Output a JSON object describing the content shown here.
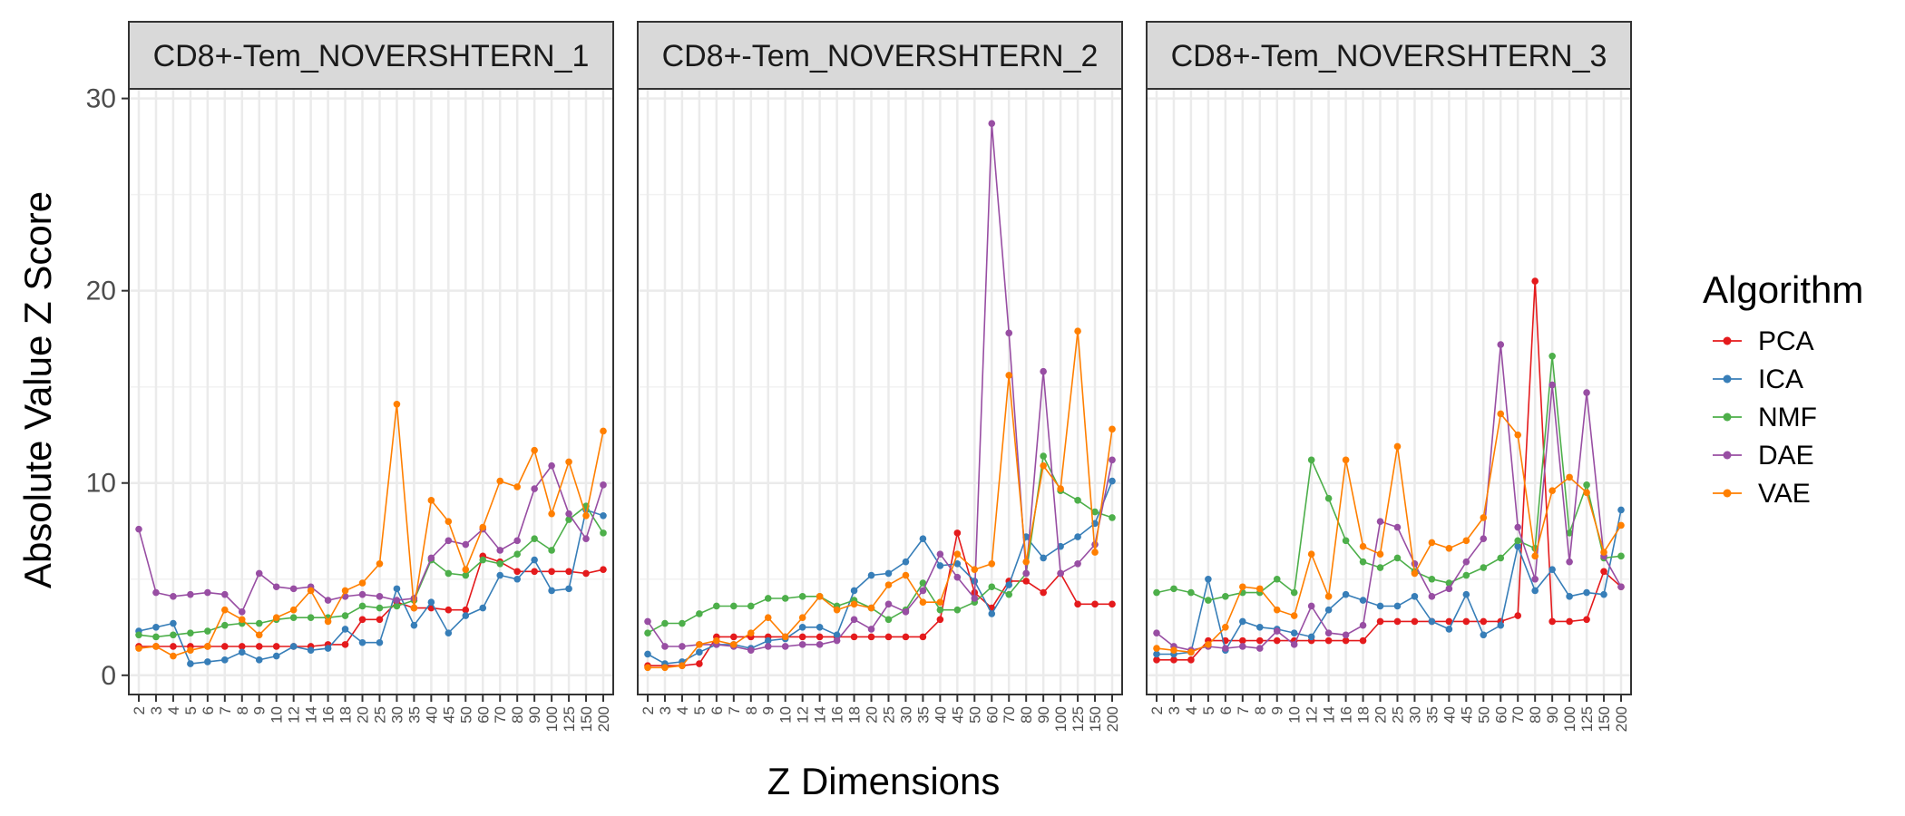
{
  "chart_data": {
    "type": "line",
    "xlabel": "Z Dimensions",
    "ylabel": "Absolute Value Z Score",
    "ylim": [
      -1,
      30.5
    ],
    "yticks": [
      0,
      10,
      20,
      30
    ],
    "x": [
      "2",
      "3",
      "4",
      "5",
      "6",
      "7",
      "8",
      "9",
      "10",
      "12",
      "14",
      "16",
      "18",
      "20",
      "25",
      "30",
      "35",
      "40",
      "45",
      "50",
      "60",
      "70",
      "80",
      "90",
      "100",
      "125",
      "150",
      "200"
    ],
    "grid": true,
    "legend": {
      "title": "Algorithm",
      "position": "right"
    },
    "panels": [
      {
        "title": "CD8+-Tem_NOVERSHTERN_1",
        "series": [
          {
            "name": "PCA",
            "color": "#E41A1C",
            "values": [
              1.5,
              1.5,
              1.5,
              1.5,
              1.5,
              1.5,
              1.5,
              1.5,
              1.5,
              1.5,
              1.5,
              1.6,
              1.6,
              2.9,
              2.9,
              3.8,
              3.5,
              3.5,
              3.4,
              3.4,
              6.2,
              5.9,
              5.4,
              5.4,
              5.4,
              5.4,
              5.3,
              5.5
            ]
          },
          {
            "name": "ICA",
            "color": "#377EB8",
            "values": [
              2.3,
              2.5,
              2.7,
              0.6,
              0.7,
              0.8,
              1.2,
              0.8,
              1.0,
              1.5,
              1.3,
              1.4,
              2.4,
              1.7,
              1.7,
              4.5,
              2.6,
              3.8,
              2.2,
              3.1,
              3.5,
              5.2,
              5.0,
              6.0,
              4.4,
              4.5,
              8.6,
              8.3
            ]
          },
          {
            "name": "NMF",
            "color": "#4DAF4A",
            "values": [
              2.1,
              2.0,
              2.1,
              2.2,
              2.3,
              2.6,
              2.7,
              2.7,
              2.9,
              3.0,
              3.0,
              3.0,
              3.1,
              3.6,
              3.5,
              3.6,
              3.9,
              6.0,
              5.3,
              5.2,
              6.0,
              5.8,
              6.3,
              7.1,
              6.5,
              8.1,
              8.8,
              7.4
            ]
          },
          {
            "name": "DAE",
            "color": "#984EA3",
            "values": [
              7.6,
              4.3,
              4.1,
              4.2,
              4.3,
              4.2,
              3.3,
              5.3,
              4.6,
              4.5,
              4.6,
              3.9,
              4.1,
              4.2,
              4.1,
              3.9,
              4.0,
              6.1,
              7.0,
              6.8,
              7.6,
              6.5,
              7.0,
              9.7,
              10.9,
              8.4,
              7.1,
              9.9
            ]
          },
          {
            "name": "VAE",
            "color": "#FF7F00",
            "values": [
              1.4,
              1.5,
              1.0,
              1.3,
              1.5,
              3.4,
              2.9,
              2.1,
              3.0,
              3.4,
              4.4,
              2.8,
              4.4,
              4.8,
              5.8,
              14.1,
              3.5,
              9.1,
              8.0,
              5.5,
              7.7,
              10.1,
              9.8,
              11.7,
              8.4,
              11.1,
              8.3,
              12.7
            ]
          }
        ]
      },
      {
        "title": "CD8+-Tem_NOVERSHTERN_2",
        "series": [
          {
            "name": "PCA",
            "color": "#E41A1C",
            "values": [
              0.5,
              0.5,
              0.5,
              0.6,
              2.0,
              2.0,
              2.0,
              2.0,
              2.0,
              2.0,
              2.0,
              2.0,
              2.0,
              2.0,
              2.0,
              2.0,
              2.0,
              2.9,
              7.4,
              4.3,
              3.5,
              4.9,
              4.9,
              4.3,
              5.3,
              3.7,
              3.7,
              3.7
            ]
          },
          {
            "name": "ICA",
            "color": "#377EB8",
            "values": [
              1.1,
              0.6,
              0.7,
              1.2,
              1.6,
              1.6,
              1.4,
              1.8,
              1.9,
              2.5,
              2.5,
              2.1,
              4.4,
              5.2,
              5.3,
              5.9,
              7.1,
              5.7,
              5.8,
              4.9,
              3.2,
              4.7,
              7.2,
              6.1,
              6.7,
              7.2,
              7.9,
              10.1
            ]
          },
          {
            "name": "NMF",
            "color": "#4DAF4A",
            "values": [
              2.2,
              2.7,
              2.7,
              3.2,
              3.6,
              3.6,
              3.6,
              4.0,
              4.0,
              4.1,
              4.1,
              3.6,
              3.9,
              3.5,
              2.9,
              3.4,
              4.8,
              3.4,
              3.4,
              3.8,
              4.6,
              4.2,
              5.3,
              11.4,
              9.6,
              9.1,
              8.5,
              8.2
            ]
          },
          {
            "name": "DAE",
            "color": "#984EA3",
            "values": [
              2.8,
              1.5,
              1.5,
              1.6,
              1.6,
              1.5,
              1.3,
              1.5,
              1.5,
              1.6,
              1.6,
              1.8,
              2.9,
              2.4,
              3.7,
              3.3,
              4.4,
              6.3,
              5.1,
              4.0,
              28.7,
              17.8,
              5.3,
              15.8,
              5.3,
              5.8,
              6.8,
              11.2
            ]
          },
          {
            "name": "VAE",
            "color": "#FF7F00",
            "values": [
              0.4,
              0.4,
              0.5,
              1.6,
              1.8,
              1.6,
              2.2,
              3.0,
              2.0,
              3.0,
              4.1,
              3.4,
              3.7,
              3.5,
              4.7,
              5.2,
              3.8,
              3.8,
              6.3,
              5.5,
              5.8,
              15.6,
              5.9,
              10.9,
              9.7,
              17.9,
              6.4,
              12.8
            ]
          }
        ]
      },
      {
        "title": "CD8+-Tem_NOVERSHTERN_3",
        "series": [
          {
            "name": "PCA",
            "color": "#E41A1C",
            "values": [
              0.8,
              0.8,
              0.8,
              1.8,
              1.8,
              1.8,
              1.8,
              1.8,
              1.8,
              1.8,
              1.8,
              1.8,
              1.8,
              2.8,
              2.8,
              2.8,
              2.8,
              2.8,
              2.8,
              2.8,
              2.8,
              3.1,
              20.5,
              2.8,
              2.8,
              2.9,
              5.4,
              4.6
            ]
          },
          {
            "name": "ICA",
            "color": "#377EB8",
            "values": [
              1.1,
              1.1,
              1.2,
              5.0,
              1.3,
              2.8,
              2.5,
              2.4,
              2.2,
              2.0,
              3.4,
              4.2,
              3.9,
              3.6,
              3.6,
              4.1,
              2.8,
              2.4,
              4.2,
              2.1,
              2.6,
              6.7,
              4.4,
              5.5,
              4.1,
              4.3,
              4.2,
              8.6
            ]
          },
          {
            "name": "NMF",
            "color": "#4DAF4A",
            "values": [
              4.3,
              4.5,
              4.3,
              3.9,
              4.1,
              4.3,
              4.3,
              5.0,
              4.3,
              11.2,
              9.2,
              7.0,
              5.9,
              5.6,
              6.1,
              5.4,
              5.0,
              4.8,
              5.2,
              5.6,
              6.1,
              7.0,
              6.6,
              16.6,
              7.4,
              9.9,
              6.1,
              6.2
            ]
          },
          {
            "name": "DAE",
            "color": "#984EA3",
            "values": [
              2.2,
              1.5,
              1.3,
              1.5,
              1.4,
              1.5,
              1.4,
              2.3,
              1.6,
              3.6,
              2.2,
              2.1,
              2.6,
              8.0,
              7.7,
              5.8,
              4.1,
              4.5,
              5.9,
              7.1,
              17.2,
              7.7,
              5.0,
              15.1,
              5.9,
              14.7,
              6.2,
              4.6
            ]
          },
          {
            "name": "VAE",
            "color": "#FF7F00",
            "values": [
              1.4,
              1.3,
              1.2,
              1.6,
              2.5,
              4.6,
              4.5,
              3.4,
              3.1,
              6.3,
              4.1,
              11.2,
              6.7,
              6.3,
              11.9,
              5.3,
              6.9,
              6.6,
              7.0,
              8.2,
              13.6,
              12.5,
              6.2,
              9.6,
              10.3,
              9.5,
              6.4,
              7.8
            ]
          }
        ]
      }
    ]
  }
}
